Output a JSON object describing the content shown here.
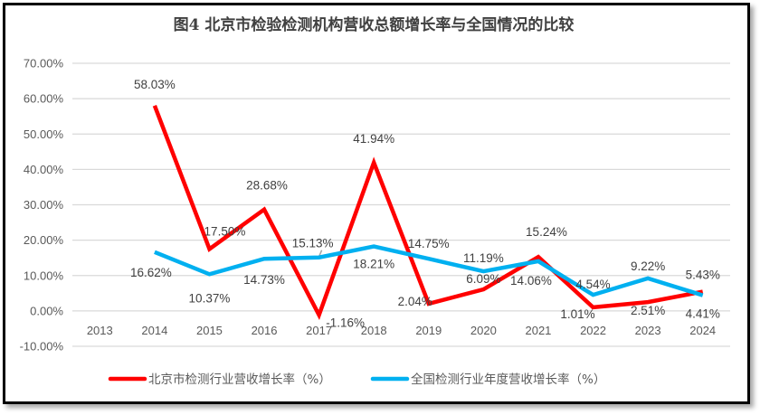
{
  "chart_data": {
    "type": "line",
    "title": "图4  北京市检验检测机构营收总额增长率与全国情况的比较",
    "xlabel": "",
    "ylabel": "",
    "categories": [
      "2013",
      "2014",
      "2015",
      "2016",
      "2017",
      "2018",
      "2019",
      "2020",
      "2021",
      "2022",
      "2023",
      "2024"
    ],
    "ylim": [
      -10,
      70
    ],
    "yticks": [
      70,
      60,
      50,
      40,
      30,
      20,
      10,
      0,
      -10
    ],
    "ytick_labels": [
      "70.00%",
      "60.00%",
      "50.00%",
      "40.00%",
      "30.00%",
      "20.00%",
      "10.00%",
      "0.00%",
      "-10.00%"
    ],
    "grid": true,
    "legend_position": "bottom",
    "series": [
      {
        "name": "北京市检测行业营收增长率（%）",
        "color": "#FF0000",
        "values": [
          null,
          58.03,
          17.5,
          28.68,
          -1.16,
          41.94,
          2.04,
          6.09,
          15.24,
          1.01,
          2.51,
          5.43
        ],
        "labels": [
          "",
          "58.03%",
          "17.50%",
          "28.68%",
          "-1.16%",
          "41.94%",
          "2.04%",
          "6.09%",
          "15.24%",
          "1.01%",
          "2.51%",
          "5.43%"
        ]
      },
      {
        "name": "全国检测行业年度营收增长率（%）",
        "color": "#00B0F0",
        "values": [
          null,
          16.62,
          10.37,
          14.73,
          15.13,
          18.21,
          14.75,
          11.19,
          14.06,
          4.54,
          9.22,
          4.41
        ],
        "labels": [
          "",
          "16.62%",
          "10.37%",
          "14.73%",
          "15.13%",
          "18.21%",
          "14.75%",
          "11.19%",
          "14.06%",
          "4.54%",
          "9.22%",
          "4.41%"
        ]
      }
    ]
  }
}
